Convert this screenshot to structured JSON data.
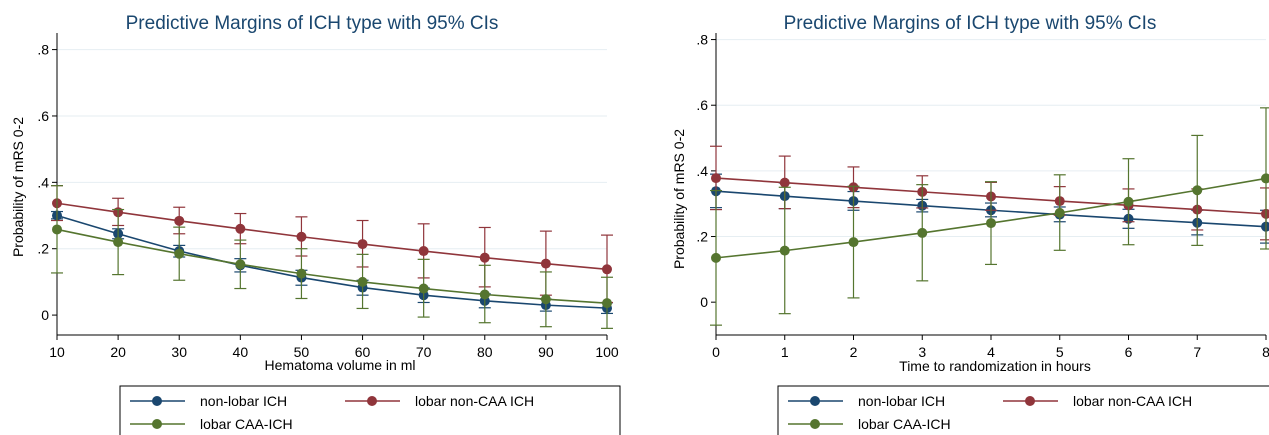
{
  "chart_data": [
    {
      "type": "line",
      "title": "Predictive Margins of ICH type with 95% CIs",
      "xlabel": "Hematoma volume in ml",
      "ylabel": "Probability of mRS 0-2",
      "xlim": [
        10,
        100
      ],
      "ylim": [
        -0.06,
        0.85
      ],
      "x": [
        10,
        20,
        30,
        40,
        50,
        60,
        70,
        80,
        90,
        100
      ],
      "x_tick_labels": [
        "10",
        "20",
        "30",
        "40",
        "50",
        "60",
        "70",
        "80",
        "90",
        "100"
      ],
      "y_ticks": [
        0,
        0.2,
        0.4,
        0.6,
        0.8
      ],
      "y_tick_labels": [
        "0",
        ".2",
        ".4",
        ".6",
        ".8"
      ],
      "grid": true,
      "legend_position": "bottom",
      "series": [
        {
          "name": "non-lobar ICH",
          "color": "#1a476f",
          "values": [
            0.3,
            0.245,
            0.193,
            0.15,
            0.113,
            0.083,
            0.06,
            0.043,
            0.03,
            0.021
          ],
          "lower": [
            0.29,
            0.23,
            0.175,
            0.13,
            0.09,
            0.06,
            0.038,
            0.022,
            0.012,
            0.005
          ],
          "upper": [
            0.312,
            0.26,
            0.21,
            0.17,
            0.135,
            0.105,
            0.082,
            0.064,
            0.048,
            0.037
          ]
        },
        {
          "name": "lobar non-CAA ICH",
          "color": "#90353b",
          "values": [
            0.337,
            0.31,
            0.284,
            0.26,
            0.236,
            0.214,
            0.193,
            0.173,
            0.155,
            0.138
          ],
          "lower": [
            0.285,
            0.27,
            0.245,
            0.215,
            0.178,
            0.145,
            0.112,
            0.085,
            0.06,
            0.038
          ],
          "upper": [
            0.39,
            0.352,
            0.325,
            0.306,
            0.296,
            0.285,
            0.275,
            0.264,
            0.253,
            0.241
          ]
        },
        {
          "name": "lobar CAA-ICH",
          "color": "#55752f",
          "values": [
            0.258,
            0.22,
            0.185,
            0.153,
            0.125,
            0.1,
            0.08,
            0.062,
            0.048,
            0.036
          ],
          "lower": [
            0.127,
            0.122,
            0.105,
            0.08,
            0.05,
            0.02,
            -0.006,
            -0.023,
            -0.035,
            -0.04
          ],
          "upper": [
            0.39,
            0.318,
            0.265,
            0.226,
            0.2,
            0.183,
            0.168,
            0.15,
            0.13,
            0.114
          ]
        }
      ]
    },
    {
      "type": "line",
      "title": "Predictive Margins of ICH type with 95% CIs",
      "xlabel": "Time to randomization in hours",
      "ylabel": "Probability of mRS 0-2",
      "xlim": [
        0,
        8
      ],
      "ylim": [
        -0.1,
        0.82
      ],
      "x": [
        0,
        1,
        2,
        3,
        4,
        5,
        6,
        7,
        8
      ],
      "x_tick_labels": [
        "0",
        "1",
        "2",
        "3",
        "4",
        "5",
        "6",
        "7",
        "8"
      ],
      "y_ticks": [
        0,
        0.2,
        0.4,
        0.6,
        0.8
      ],
      "y_tick_labels": [
        "0",
        ".2",
        ".4",
        ".6",
        ".8"
      ],
      "grid": true,
      "legend_position": "bottom",
      "series": [
        {
          "name": "non-lobar ICH",
          "color": "#1a476f",
          "values": [
            0.338,
            0.323,
            0.308,
            0.294,
            0.28,
            0.267,
            0.254,
            0.242,
            0.23
          ],
          "lower": [
            0.288,
            0.285,
            0.28,
            0.275,
            0.26,
            0.245,
            0.225,
            0.205,
            0.18
          ],
          "upper": [
            0.39,
            0.363,
            0.337,
            0.313,
            0.302,
            0.29,
            0.283,
            0.28,
            0.28
          ]
        },
        {
          "name": "lobar non-CAA ICH",
          "color": "#90353b",
          "values": [
            0.378,
            0.364,
            0.35,
            0.336,
            0.322,
            0.308,
            0.295,
            0.282,
            0.269
          ],
          "lower": [
            0.282,
            0.285,
            0.288,
            0.287,
            0.28,
            0.265,
            0.245,
            0.22,
            0.19
          ],
          "upper": [
            0.475,
            0.445,
            0.412,
            0.385,
            0.365,
            0.352,
            0.345,
            0.345,
            0.348
          ]
        },
        {
          "name": "lobar CAA-ICH",
          "color": "#55752f",
          "values": [
            0.135,
            0.157,
            0.183,
            0.211,
            0.241,
            0.272,
            0.306,
            0.341,
            0.377
          ],
          "lower": [
            -0.07,
            -0.035,
            0.013,
            0.065,
            0.115,
            0.158,
            0.175,
            0.173,
            0.162
          ],
          "upper": [
            0.34,
            0.35,
            0.353,
            0.358,
            0.367,
            0.388,
            0.437,
            0.508,
            0.592
          ]
        }
      ]
    }
  ],
  "legend": {
    "items": [
      "non-lobar ICH",
      "lobar non-CAA ICH",
      "lobar CAA-ICH"
    ]
  }
}
